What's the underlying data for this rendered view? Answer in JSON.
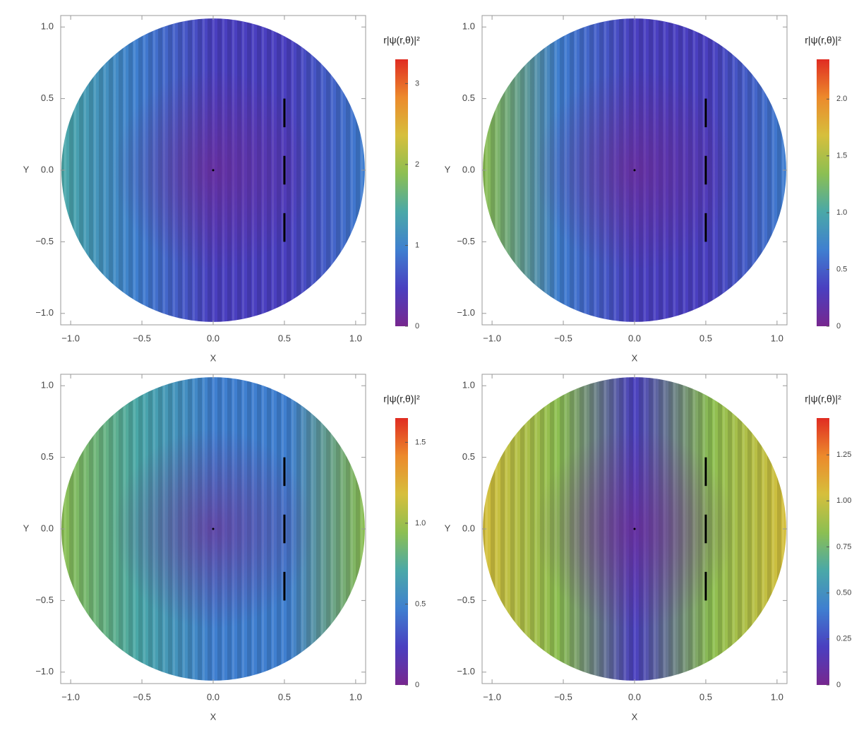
{
  "chart_data": [
    {
      "type": "density",
      "xlabel": "X",
      "ylabel": "Y",
      "colorbar_label": "r|ψ(r,θ)|²",
      "xlim": [
        -1.07,
        1.07
      ],
      "ylim": [
        -1.08,
        1.08
      ],
      "xticks": [
        {
          "value": -1,
          "label": "−1.0"
        },
        {
          "value": -0.5,
          "label": "−0.5"
        },
        {
          "value": 0,
          "label": "0.0"
        },
        0.5,
        {
          "value": 1,
          "label": "1.0"
        }
      ],
      "yticks": [
        {
          "value": -1,
          "label": "−1.0"
        },
        {
          "value": -0.5,
          "label": "−0.5"
        },
        {
          "value": 0,
          "label": "0.0"
        },
        0.5,
        {
          "value": 1,
          "label": "1.0"
        }
      ],
      "zlim": [
        0,
        3.3
      ],
      "zticks": [
        0,
        1,
        2,
        3
      ],
      "colormap": [
        "#77278f",
        "#4a3fc0",
        "#3f7fd0",
        "#4aa8a8",
        "#8cbf52",
        "#d6bf3c",
        "#ec8a2c",
        "#e02c22"
      ],
      "slits": {
        "x": 0.5,
        "segments": [
          [
            0.3,
            0.5
          ],
          [
            -0.1,
            0.1
          ],
          [
            -0.5,
            -0.3
          ]
        ]
      }
    },
    {
      "type": "density",
      "xlabel": "X",
      "ylabel": "Y",
      "colorbar_label": "r|ψ(r,θ)|²",
      "xlim": [
        -1.07,
        1.07
      ],
      "ylim": [
        -1.08,
        1.08
      ],
      "xticks": [
        {
          "value": -1,
          "label": "−1.0"
        },
        {
          "value": -0.5,
          "label": "−0.5"
        },
        {
          "value": 0,
          "label": "0.0"
        },
        0.5,
        {
          "value": 1,
          "label": "1.0"
        }
      ],
      "yticks": [
        {
          "value": -1,
          "label": "−1.0"
        },
        {
          "value": -0.5,
          "label": "−0.5"
        },
        {
          "value": 0,
          "label": "0.0"
        },
        0.5,
        {
          "value": 1,
          "label": "1.0"
        }
      ],
      "zlim": [
        0,
        2.35
      ],
      "zticks": [
        0,
        0.5,
        {
          "value": 1,
          "label": "1.0"
        },
        1.5,
        {
          "value": 2,
          "label": "2.0"
        }
      ],
      "colormap": [
        "#77278f",
        "#4a3fc0",
        "#3f7fd0",
        "#4aa8a8",
        "#8cbf52",
        "#d6bf3c",
        "#ec8a2c",
        "#e02c22"
      ],
      "slits": {
        "x": 0.5,
        "segments": [
          [
            0.3,
            0.5
          ],
          [
            -0.1,
            0.1
          ],
          [
            -0.5,
            -0.3
          ]
        ]
      }
    },
    {
      "type": "density",
      "xlabel": "X",
      "ylabel": "Y",
      "colorbar_label": "r|ψ(r,θ)|²",
      "xlim": [
        -1.07,
        1.07
      ],
      "ylim": [
        -1.08,
        1.08
      ],
      "xticks": [
        {
          "value": -1,
          "label": "−1.0"
        },
        {
          "value": -0.5,
          "label": "−0.5"
        },
        {
          "value": 0,
          "label": "0.0"
        },
        0.5,
        {
          "value": 1,
          "label": "1.0"
        }
      ],
      "yticks": [
        {
          "value": -1,
          "label": "−1.0"
        },
        {
          "value": -0.5,
          "label": "−0.5"
        },
        {
          "value": 0,
          "label": "0.0"
        },
        0.5,
        {
          "value": 1,
          "label": "1.0"
        }
      ],
      "zlim": [
        0,
        1.65
      ],
      "zticks": [
        0,
        0.5,
        {
          "value": 1,
          "label": "1.0"
        },
        1.5
      ],
      "colormap": [
        "#77278f",
        "#4a3fc0",
        "#3f7fd0",
        "#4aa8a8",
        "#8cbf52",
        "#d6bf3c",
        "#ec8a2c",
        "#e02c22"
      ],
      "slits": {
        "x": 0.5,
        "segments": [
          [
            0.3,
            0.5
          ],
          [
            -0.1,
            0.1
          ],
          [
            -0.5,
            -0.3
          ]
        ]
      }
    },
    {
      "type": "density",
      "xlabel": "X",
      "ylabel": "Y",
      "colorbar_label": "r|ψ(r,θ)|²",
      "xlim": [
        -1.07,
        1.07
      ],
      "ylim": [
        -1.08,
        1.08
      ],
      "xticks": [
        {
          "value": -1,
          "label": "−1.0"
        },
        {
          "value": -0.5,
          "label": "−0.5"
        },
        {
          "value": 0,
          "label": "0.0"
        },
        0.5,
        {
          "value": 1,
          "label": "1.0"
        }
      ],
      "yticks": [
        {
          "value": -1,
          "label": "−1.0"
        },
        {
          "value": -0.5,
          "label": "−0.5"
        },
        {
          "value": 0,
          "label": "0.0"
        },
        0.5,
        {
          "value": 1,
          "label": "1.0"
        }
      ],
      "zlim": [
        0,
        1.45
      ],
      "zticks": [
        0,
        0.25,
        {
          "value": 0.5,
          "label": "0.50"
        },
        0.75,
        {
          "value": 1,
          "label": "1.00"
        },
        1.25
      ],
      "colormap": [
        "#77278f",
        "#4a3fc0",
        "#3f7fd0",
        "#4aa8a8",
        "#8cbf52",
        "#d6bf3c",
        "#ec8a2c",
        "#e02c22"
      ],
      "slits": {
        "x": 0.5,
        "segments": [
          [
            0.3,
            0.5
          ],
          [
            -0.1,
            0.1
          ],
          [
            -0.5,
            -0.3
          ]
        ]
      }
    }
  ]
}
